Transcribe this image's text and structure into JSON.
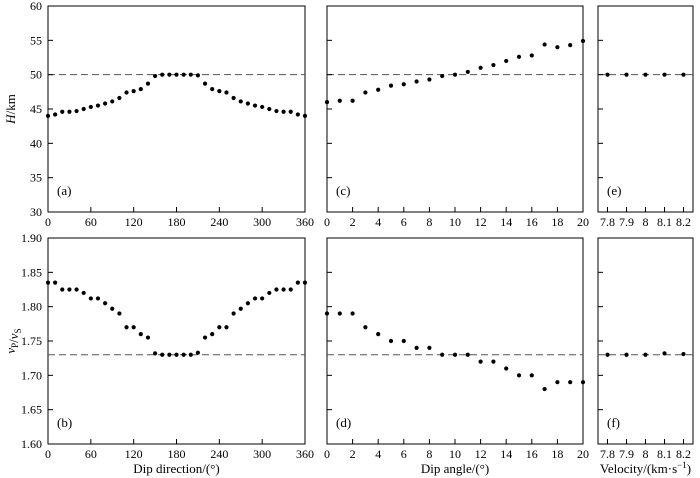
{
  "chart_data": [
    {
      "panel": "(a)",
      "type": "scatter",
      "xlabel": "",
      "ylabel": "H/km",
      "xlim": [
        0,
        360
      ],
      "ylim": [
        30,
        60
      ],
      "xticks": [
        0,
        60,
        120,
        180,
        240,
        300,
        360
      ],
      "yticks": [
        30,
        35,
        40,
        45,
        50,
        55,
        60
      ],
      "reference_line": 50,
      "x": [
        0,
        10,
        20,
        30,
        40,
        50,
        60,
        70,
        80,
        90,
        100,
        110,
        120,
        130,
        140,
        150,
        160,
        170,
        180,
        190,
        200,
        210,
        220,
        230,
        240,
        250,
        260,
        270,
        280,
        290,
        300,
        310,
        320,
        330,
        340,
        350,
        360
      ],
      "y": [
        44.0,
        44.2,
        44.6,
        44.6,
        44.7,
        45.0,
        45.3,
        45.5,
        45.8,
        46.1,
        46.6,
        47.4,
        47.6,
        47.9,
        48.7,
        49.8,
        50.0,
        50.0,
        50.0,
        50.0,
        50.0,
        49.9,
        48.7,
        47.9,
        47.6,
        47.4,
        46.6,
        46.1,
        45.8,
        45.5,
        45.3,
        45.0,
        44.7,
        44.6,
        44.6,
        44.2,
        44.0
      ]
    },
    {
      "panel": "(b)",
      "type": "scatter",
      "xlabel": "Dip direction/(°)",
      "ylabel": "vP/vS",
      "xlim": [
        0,
        360
      ],
      "ylim": [
        1.6,
        1.9
      ],
      "xticks": [
        0,
        60,
        120,
        180,
        240,
        300,
        360
      ],
      "yticks": [
        1.6,
        1.65,
        1.7,
        1.75,
        1.8,
        1.85,
        1.9
      ],
      "reference_line": 1.73,
      "x": [
        0,
        10,
        20,
        30,
        40,
        50,
        60,
        70,
        80,
        90,
        100,
        110,
        120,
        130,
        140,
        150,
        160,
        170,
        180,
        190,
        200,
        210,
        220,
        230,
        240,
        250,
        260,
        270,
        280,
        290,
        300,
        310,
        320,
        330,
        340,
        350,
        360
      ],
      "y": [
        1.835,
        1.835,
        1.825,
        1.825,
        1.825,
        1.82,
        1.812,
        1.812,
        1.805,
        1.797,
        1.79,
        1.77,
        1.77,
        1.76,
        1.755,
        1.732,
        1.73,
        1.73,
        1.73,
        1.73,
        1.73,
        1.733,
        1.755,
        1.76,
        1.77,
        1.77,
        1.79,
        1.797,
        1.805,
        1.812,
        1.812,
        1.82,
        1.825,
        1.825,
        1.825,
        1.835,
        1.835
      ]
    },
    {
      "panel": "(c)",
      "type": "scatter",
      "xlabel": "",
      "ylabel": "",
      "xlim": [
        0,
        20
      ],
      "ylim": [
        30,
        60
      ],
      "xticks": [
        0,
        2,
        4,
        6,
        8,
        10,
        12,
        14,
        16,
        18,
        20
      ],
      "yticks": [
        30,
        35,
        40,
        45,
        50,
        55,
        60
      ],
      "reference_line": 50,
      "x": [
        0,
        1,
        2,
        3,
        4,
        5,
        6,
        7,
        8,
        9,
        10,
        11,
        12,
        13,
        14,
        15,
        16,
        17,
        18,
        19,
        20
      ],
      "y": [
        46.0,
        46.2,
        46.2,
        47.4,
        47.8,
        48.4,
        48.6,
        49.0,
        49.3,
        49.8,
        50.0,
        50.4,
        51.0,
        51.4,
        52.0,
        52.6,
        52.8,
        54.4,
        54.0,
        54.3,
        54.9
      ]
    },
    {
      "panel": "(d)",
      "type": "scatter",
      "xlabel": "Dip angle/(°)",
      "ylabel": "",
      "xlim": [
        0,
        20
      ],
      "ylim": [
        1.6,
        1.9
      ],
      "xticks": [
        0,
        2,
        4,
        6,
        8,
        10,
        12,
        14,
        16,
        18,
        20
      ],
      "yticks": [
        1.6,
        1.65,
        1.7,
        1.75,
        1.8,
        1.85,
        1.9
      ],
      "reference_line": 1.73,
      "x": [
        0,
        1,
        2,
        3,
        4,
        5,
        6,
        7,
        8,
        9,
        10,
        11,
        12,
        13,
        14,
        15,
        16,
        17,
        18,
        19,
        20
      ],
      "y": [
        1.79,
        1.79,
        1.79,
        1.77,
        1.76,
        1.75,
        1.75,
        1.74,
        1.74,
        1.73,
        1.73,
        1.73,
        1.72,
        1.72,
        1.71,
        1.7,
        1.7,
        1.68,
        1.69,
        1.69,
        1.69
      ]
    },
    {
      "panel": "(e)",
      "type": "scatter",
      "xlabel": "",
      "ylabel": "",
      "xlim": [
        7.75,
        8.25
      ],
      "ylim": [
        30,
        60
      ],
      "xticks": [
        7.8,
        7.9,
        8.0,
        8.1,
        8.2
      ],
      "yticks": [
        30,
        35,
        40,
        45,
        50,
        55,
        60
      ],
      "reference_line": 50,
      "x": [
        7.8,
        7.9,
        8.0,
        8.1,
        8.2
      ],
      "y": [
        50.0,
        50.0,
        50.0,
        50.0,
        50.0
      ]
    },
    {
      "panel": "(f)",
      "type": "scatter",
      "xlabel": "Velocity/(km·s⁻¹)",
      "ylabel": "",
      "xlim": [
        7.75,
        8.25
      ],
      "ylim": [
        1.6,
        1.9
      ],
      "xticks": [
        7.8,
        7.9,
        8.0,
        8.1,
        8.2
      ],
      "yticks": [
        1.6,
        1.65,
        1.7,
        1.75,
        1.8,
        1.85,
        1.9
      ],
      "reference_line": 1.73,
      "x": [
        7.8,
        7.9,
        8.0,
        8.1,
        8.2
      ],
      "y": [
        1.73,
        1.73,
        1.73,
        1.732,
        1.731
      ]
    }
  ]
}
